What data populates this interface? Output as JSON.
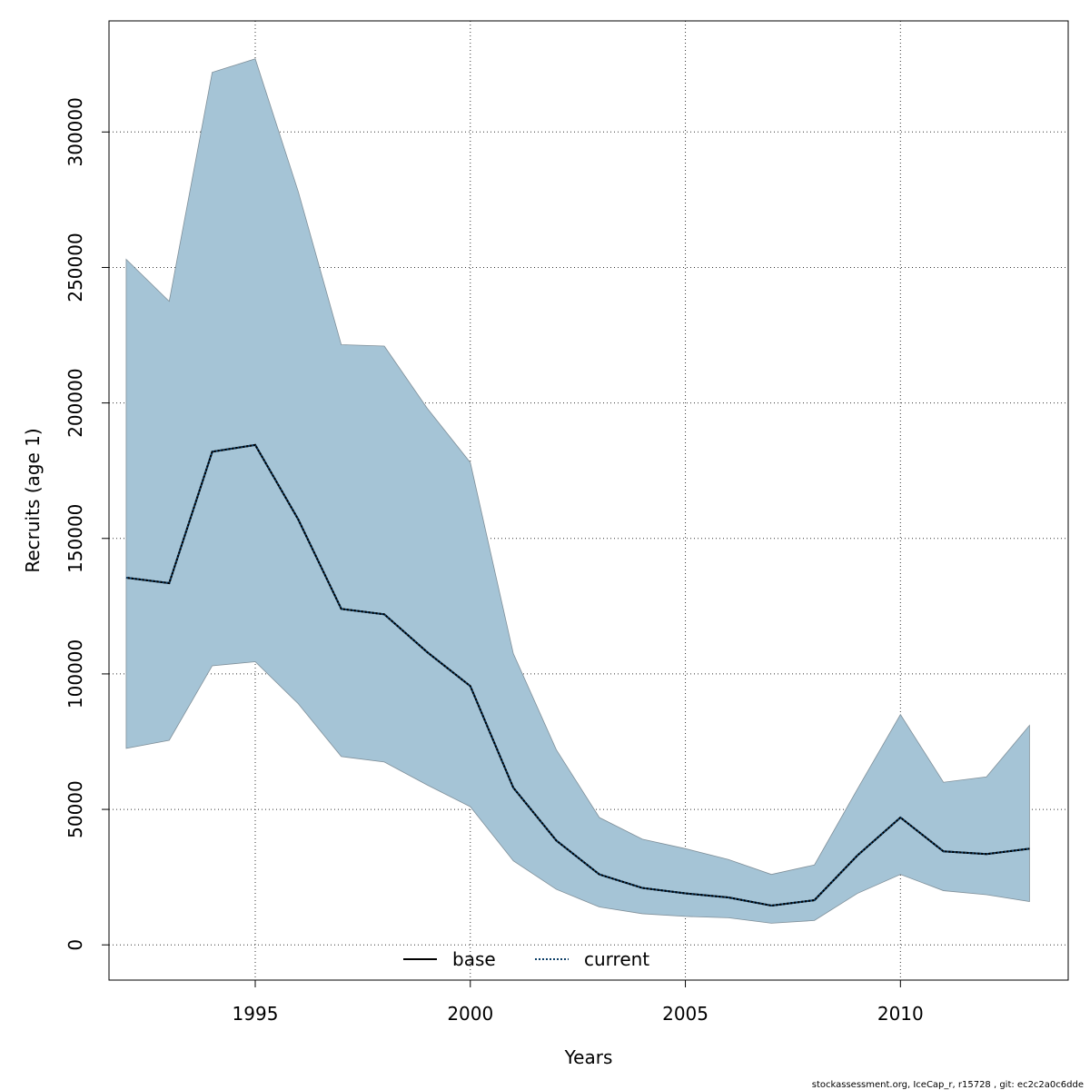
{
  "chart_data": {
    "type": "area",
    "xlabel": "Years",
    "ylabel": "Recruits (age 1)",
    "xlim": [
      1991.6,
      2013.9
    ],
    "ylim": [
      -13000,
      341000
    ],
    "x_ticks": [
      1995,
      2000,
      2005,
      2010
    ],
    "x_tick_labels": [
      "1995",
      "2000",
      "2005",
      "2010"
    ],
    "y_ticks": [
      0,
      50000,
      100000,
      150000,
      200000,
      250000,
      300000
    ],
    "y_tick_labels": [
      "0",
      "50000",
      "100000",
      "150000",
      "200000",
      "250000",
      "300000"
    ],
    "grid": true,
    "legend_position": "bottom-center",
    "band_color": "#a5c4d6",
    "band_edge_color": "#7f8f99",
    "current_line_color": "#0b3d66",
    "x": [
      1992,
      1993,
      1994,
      1995,
      1996,
      1997,
      1998,
      1999,
      2000,
      2001,
      2002,
      2003,
      2004,
      2005,
      2006,
      2007,
      2008,
      2009,
      2010,
      2011,
      2012,
      2013
    ],
    "band_upper": [
      253000,
      237500,
      322000,
      327000,
      278000,
      221500,
      221000,
      198000,
      178000,
      107500,
      72000,
      47000,
      39000,
      35500,
      31500,
      26000,
      29500,
      57500,
      85000,
      60000,
      62000,
      81000
    ],
    "band_lower": [
      72500,
      75500,
      103000,
      104500,
      89000,
      69500,
      67500,
      59000,
      51000,
      31000,
      20500,
      14000,
      11500,
      10500,
      10000,
      8000,
      9000,
      19000,
      26000,
      20000,
      18500,
      16000
    ],
    "series": [
      {
        "name": "base",
        "style": "solid",
        "values": [
          135500,
          133500,
          182000,
          184500,
          157000,
          124000,
          122000,
          108000,
          95500,
          58000,
          38500,
          26000,
          21000,
          19000,
          17500,
          14500,
          16500,
          33000,
          47000,
          34500,
          33500,
          35500
        ]
      },
      {
        "name": "current",
        "style": "dotted",
        "values": [
          135500,
          133500,
          182000,
          184500,
          157000,
          124000,
          122000,
          108000,
          95500,
          58000,
          38500,
          26000,
          21000,
          19000,
          17500,
          14500,
          16500,
          33000,
          47000,
          34500,
          33500,
          35500
        ]
      }
    ],
    "legend": [
      {
        "label": "base",
        "style": "solid"
      },
      {
        "label": "current",
        "style": "dotted"
      }
    ]
  },
  "footer": {
    "text": "stockassessment.org, IceCap_r, r15728 , git: ec2c2a0c6dde"
  }
}
